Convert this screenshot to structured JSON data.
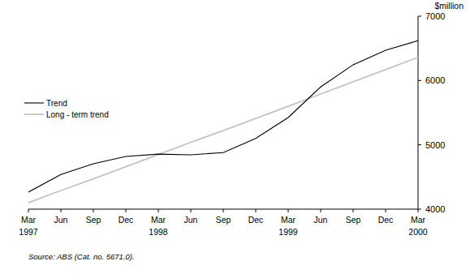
{
  "chart_data": {
    "type": "line",
    "ylabel": "$million",
    "source": "Source: ABS (Cat. no. 5671.0).",
    "categories": [
      "Mar\n1997",
      "Jun",
      "Sep",
      "Dec",
      "Mar\n1998",
      "Jun",
      "Sep",
      "Dec",
      "Mar\n1999",
      "Jun",
      "Sep",
      "Dec",
      "Mar\n2000"
    ],
    "series": [
      {
        "name": "Trend",
        "color": "#000000",
        "values": [
          4265,
          4540,
          4705,
          4820,
          4855,
          4845,
          4880,
          5100,
          5425,
          5900,
          6245,
          6470,
          6620
        ]
      },
      {
        "name": "Long - term trend",
        "color": "#c4c4c4",
        "values": [
          4100,
          4290,
          4470,
          4660,
          4850,
          5040,
          5220,
          5410,
          5600,
          5790,
          5980,
          6170,
          6360
        ]
      }
    ],
    "ylim": [
      4000,
      7000
    ],
    "yticks": [
      4000,
      5000,
      6000,
      7000
    ],
    "legend": "left",
    "grid": false
  }
}
